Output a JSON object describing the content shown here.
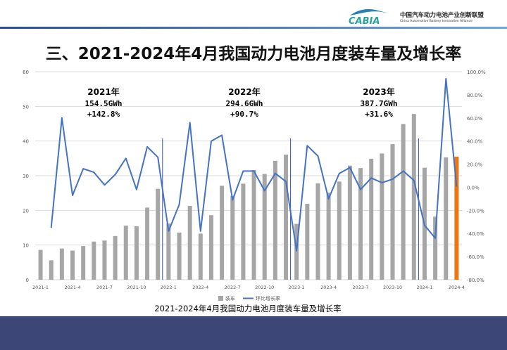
{
  "header": {
    "logo_text": "CABIA",
    "org_cn": "中国汽车动力电池产业创新联盟",
    "org_en": "China Automotive Battery Innovation Alliance"
  },
  "page_title": "三、2021-2024年4月我国动力电池月度装车量及增长率",
  "chart_data": {
    "type": "bar",
    "title": "2021-2024年4月我国动力电池月度装车量及增长率",
    "categories": [
      "2021-1",
      "2021-2",
      "2021-3",
      "2021-4",
      "2021-5",
      "2021-6",
      "2021-7",
      "2021-8",
      "2021-9",
      "2021-10",
      "2021-11",
      "2021-12",
      "2022-1",
      "2022-2",
      "2022-3",
      "2022-4",
      "2022-5",
      "2022-6",
      "2022-7",
      "2022-8",
      "2022-9",
      "2022-10",
      "2022-11",
      "2022-12",
      "2023-1",
      "2023-2",
      "2023-3",
      "2023-4",
      "2023-5",
      "2023-6",
      "2023-7",
      "2023-8",
      "2023-9",
      "2023-10",
      "2023-11",
      "2023-12",
      "2024-1",
      "2024-2",
      "2024-3",
      "2024-4"
    ],
    "x_tick_labels": [
      "2021-1",
      "2021-4",
      "2021-7",
      "2021-10",
      "2022-1",
      "2022-4",
      "2022-7",
      "2022-10",
      "2023-1",
      "2023-4",
      "2023-7",
      "2023-10",
      "2024-1",
      "2024-4"
    ],
    "series": [
      {
        "name": "装车",
        "type": "bar",
        "axis": "left",
        "color": "#a6a6a6",
        "highlight_color": "#ee7512",
        "values": [
          8.6,
          5.6,
          9.0,
          8.4,
          9.7,
          11.0,
          11.3,
          12.6,
          15.6,
          15.4,
          20.8,
          26.2,
          16.2,
          13.6,
          21.3,
          13.3,
          18.6,
          27.1,
          24.2,
          27.7,
          31.6,
          30.5,
          34.3,
          36.1,
          16.1,
          21.9,
          27.8,
          25.1,
          28.3,
          32.9,
          32.2,
          34.9,
          36.4,
          39.1,
          44.9,
          47.8,
          32.3,
          18.2,
          35.3,
          35.5
        ]
      },
      {
        "name": "环比增长率",
        "type": "line",
        "axis": "right",
        "color": "#4472c4",
        "values": [
          null,
          -35,
          60,
          -7,
          16,
          13,
          2,
          11,
          25,
          -2,
          35,
          26,
          -38,
          -15,
          56,
          -38,
          40,
          45,
          -11,
          14,
          14,
          -3,
          12,
          5,
          -55,
          36,
          27,
          -10,
          12,
          17,
          -2,
          8,
          4,
          7,
          14,
          6,
          -33,
          -44,
          94,
          0.6
        ]
      }
    ],
    "left_axis": {
      "ylim": [
        0,
        60
      ],
      "ticks": [
        "0",
        "10",
        "20",
        "30",
        "40",
        "50",
        "60"
      ]
    },
    "right_axis": {
      "ylim": [
        -80,
        100
      ],
      "ticks": [
        "-80.0%",
        "-60.0%",
        "-40.0%",
        "-20.0%",
        "0.0%",
        "20.0%",
        "40.0%",
        "60.0%",
        "80.0%",
        "100.0%"
      ]
    },
    "grid": true,
    "legend_position": "bottom",
    "annotations": [
      {
        "year": "2021年",
        "total": "154.5GWh",
        "growth": "+142.8%"
      },
      {
        "year": "2022年",
        "total": "294.6GWh",
        "growth": "+90.7%"
      },
      {
        "year": "2023年",
        "total": "387.7GWh",
        "growth": "+31.6%"
      }
    ]
  }
}
